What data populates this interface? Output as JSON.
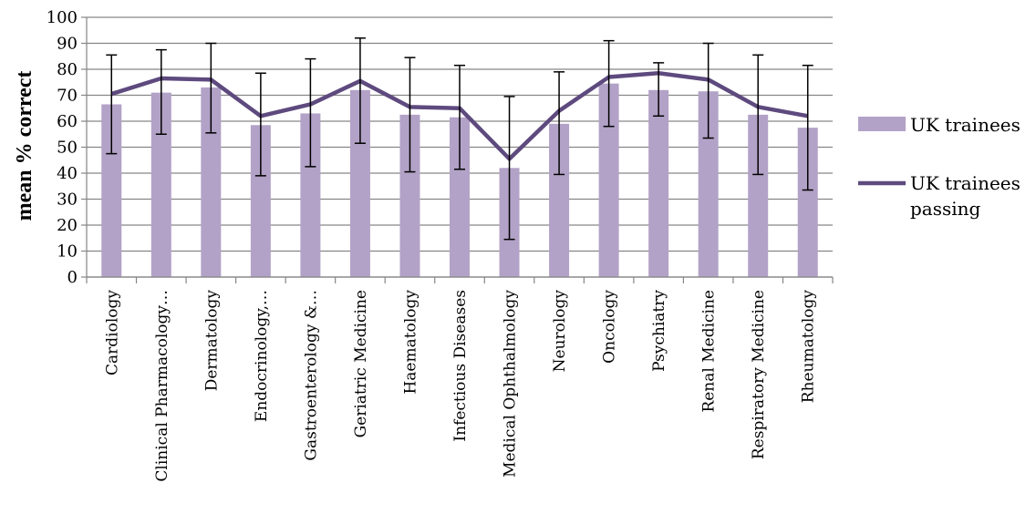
{
  "chart_data": {
    "type": "bar",
    "ylabel": "mean % correct",
    "xlabel": "",
    "ylim": [
      0,
      100
    ],
    "yticks": [
      0,
      10,
      20,
      30,
      40,
      50,
      60,
      70,
      80,
      90,
      100
    ],
    "grid": true,
    "legend_position": "right",
    "categories": [
      "Cardiology",
      "Clinical Pharmacology…",
      "Dermatology",
      "Endocrinology,…",
      "Gastroenterology &…",
      "Geriatric Medicine",
      "Haematology",
      "Infectious Diseases",
      "Medical Ophthalmology",
      "Neurology",
      "Oncology",
      "Psychiatry",
      "Renal Medicine",
      "Respiratory Medicine",
      "Rheumatology"
    ],
    "series": [
      {
        "name": "UK trainees",
        "type": "bar",
        "color": "#b3a2c7",
        "values": [
          66.5,
          71,
          73,
          58.5,
          63,
          72,
          62.5,
          61.5,
          42,
          59,
          74.5,
          72,
          71.5,
          62.5,
          57.5
        ],
        "error_low": [
          47.5,
          55,
          55.5,
          39,
          42.5,
          51.5,
          40.5,
          41.5,
          14.5,
          39.5,
          58,
          62,
          53.5,
          39.5,
          33.5
        ],
        "error_high": [
          85.5,
          87.5,
          90,
          78.5,
          84,
          92,
          84.5,
          81.5,
          69.5,
          79,
          91,
          82.5,
          90,
          85.5,
          81.5
        ]
      },
      {
        "name": "UK trainees passing",
        "type": "line",
        "color": "#5e4a7e",
        "values": [
          70.5,
          76.5,
          76,
          62,
          66.5,
          75.5,
          65.5,
          65,
          45.5,
          64,
          77,
          78.5,
          76,
          65.5,
          62
        ]
      }
    ]
  }
}
